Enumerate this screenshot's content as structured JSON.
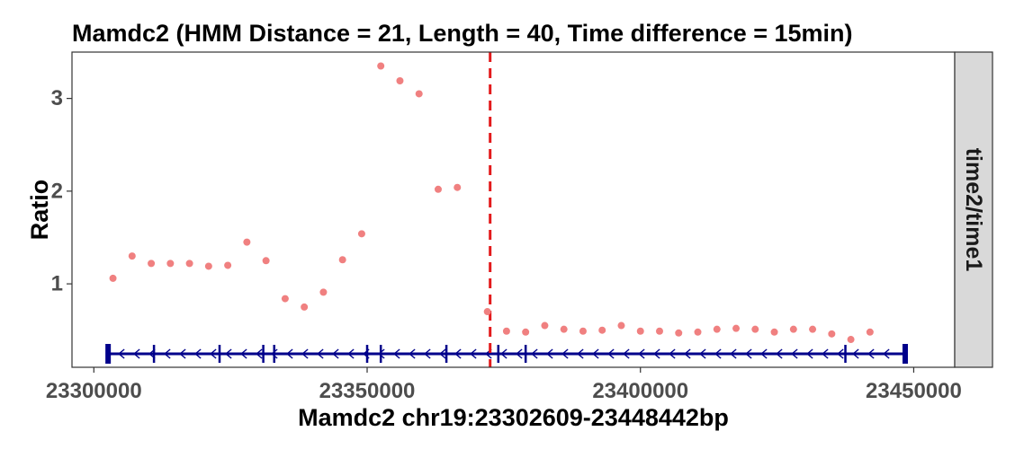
{
  "chart_data": {
    "type": "scatter",
    "title": "Mamdc2 (HMM Distance = 21, Length = 40, Time difference = 15min)",
    "xlabel": "Mamdc2 chr19:23302609-23448442bp",
    "ylabel": "Ratio",
    "facet_label": "time2/time1",
    "xlim": [
      23296000,
      23457500
    ],
    "ylim": [
      0.1,
      3.5
    ],
    "x_ticks": [
      23300000,
      23350000,
      23400000,
      23450000
    ],
    "x_tick_labels": [
      "23300000",
      "23350000",
      "23400000",
      "23450000"
    ],
    "y_ticks": [
      1,
      2,
      3
    ],
    "y_tick_labels": [
      "1",
      "2",
      "3"
    ],
    "grid": false,
    "vline_x": 23372500,
    "points": {
      "x": [
        23303500,
        23307000,
        23310500,
        23314000,
        23317500,
        23321000,
        23324500,
        23328000,
        23331500,
        23335000,
        23338500,
        23342000,
        23345500,
        23349000,
        23352500,
        23356000,
        23359500,
        23363000,
        23366500,
        23372000,
        23375500,
        23379000,
        23382500,
        23386000,
        23389500,
        23393000,
        23396500,
        23400000,
        23403500,
        23407000,
        23410500,
        23414000,
        23417500,
        23421000,
        23424500,
        23428000,
        23431500,
        23435000,
        23438500,
        23442000
      ],
      "y": [
        1.06,
        1.3,
        1.22,
        1.22,
        1.22,
        1.19,
        1.2,
        1.45,
        1.25,
        0.84,
        0.75,
        0.91,
        1.26,
        1.54,
        3.35,
        3.19,
        3.05,
        2.02,
        2.04,
        0.7,
        0.49,
        0.48,
        0.55,
        0.51,
        0.49,
        0.5,
        0.55,
        0.49,
        0.49,
        0.47,
        0.48,
        0.51,
        0.52,
        0.51,
        0.48,
        0.51,
        0.51,
        0.46,
        0.4,
        0.48
      ]
    },
    "gene_track": {
      "start": 23302609,
      "end": 23448442,
      "strand": "-",
      "exons": [
        23302609,
        23311000,
        23323000,
        23331000,
        23333000,
        23350000,
        23352500,
        23364500,
        23374000,
        23379000,
        23437500,
        23448442
      ]
    },
    "colors": {
      "points": "#f08080",
      "vline": "#e31a1c",
      "gene": "#00008b",
      "strip_bg": "#d9d9d9",
      "panel_border": "#333333"
    }
  }
}
